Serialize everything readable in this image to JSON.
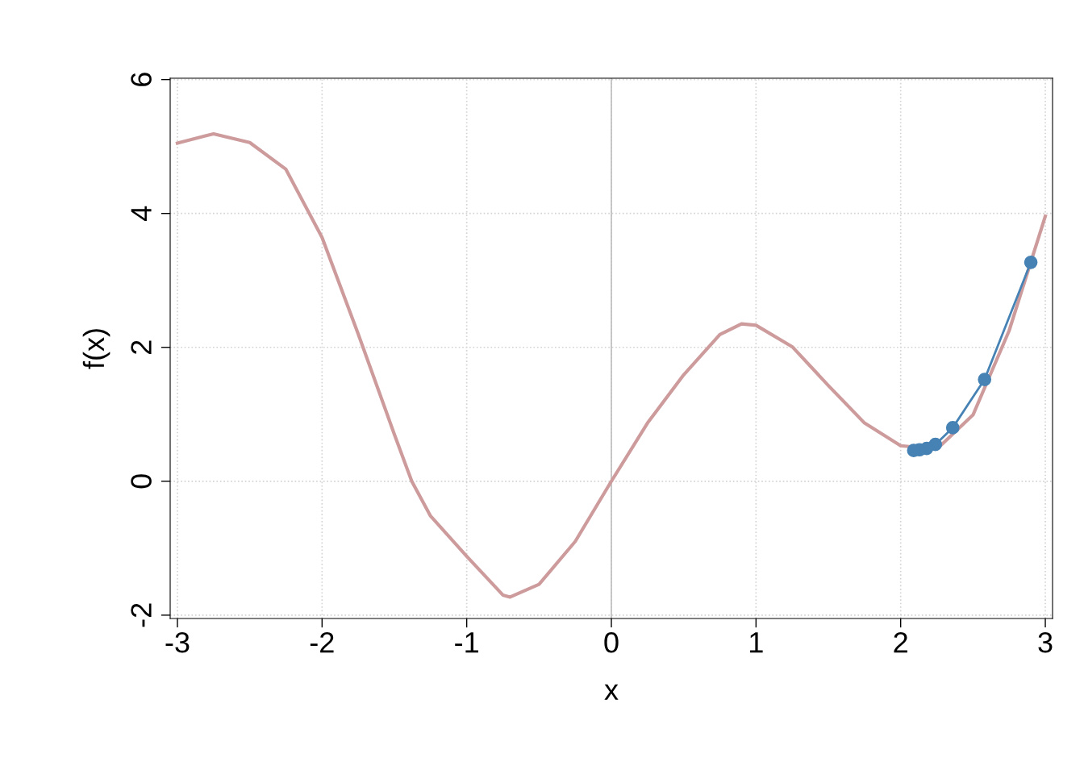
{
  "chart_data": {
    "type": "line",
    "xlabel": "x",
    "ylabel": "f(x)",
    "xlim": [
      -3.05,
      3.05
    ],
    "ylim": [
      -2.05,
      6.02
    ],
    "xticks": [
      -3,
      -2,
      -1,
      0,
      1,
      2,
      3
    ],
    "yticks": [
      -2,
      0,
      2,
      4,
      6
    ],
    "grid": true,
    "ref_lines": [
      {
        "axis": "x",
        "value": 0,
        "color": "#bebebe",
        "line_style": "solid"
      }
    ],
    "series": [
      {
        "color": "#cd9b9b",
        "marker": "none",
        "x": [
          -3,
          -2.75,
          -2.5,
          -2.25,
          -2,
          -1.75,
          -1.5,
          -1.38,
          -1.25,
          -1,
          -0.75,
          -0.7,
          -0.5,
          -0.25,
          0,
          0.25,
          0.5,
          0.75,
          0.9,
          1,
          1.25,
          1.5,
          1.75,
          2,
          2.25,
          2.5,
          2.75,
          3
        ],
        "values": [
          5.05,
          5.19,
          5.06,
          4.66,
          3.64,
          2.2,
          0.7,
          0,
          -0.52,
          -1.12,
          -1.7,
          -1.73,
          -1.54,
          -0.9,
          0,
          0.87,
          1.59,
          2.19,
          2.35,
          2.33,
          2.01,
          1.43,
          0.87,
          0.53,
          0.48,
          0.99,
          2.25,
          3.96
        ]
      },
      {
        "color": "#4682b4",
        "marker": "circle",
        "x": [
          2.9,
          2.58,
          2.36,
          2.24,
          2.18,
          2.13,
          2.09
        ],
        "values": [
          3.27,
          1.52,
          0.8,
          0.55,
          0.49,
          0.47,
          0.46
        ]
      }
    ]
  }
}
